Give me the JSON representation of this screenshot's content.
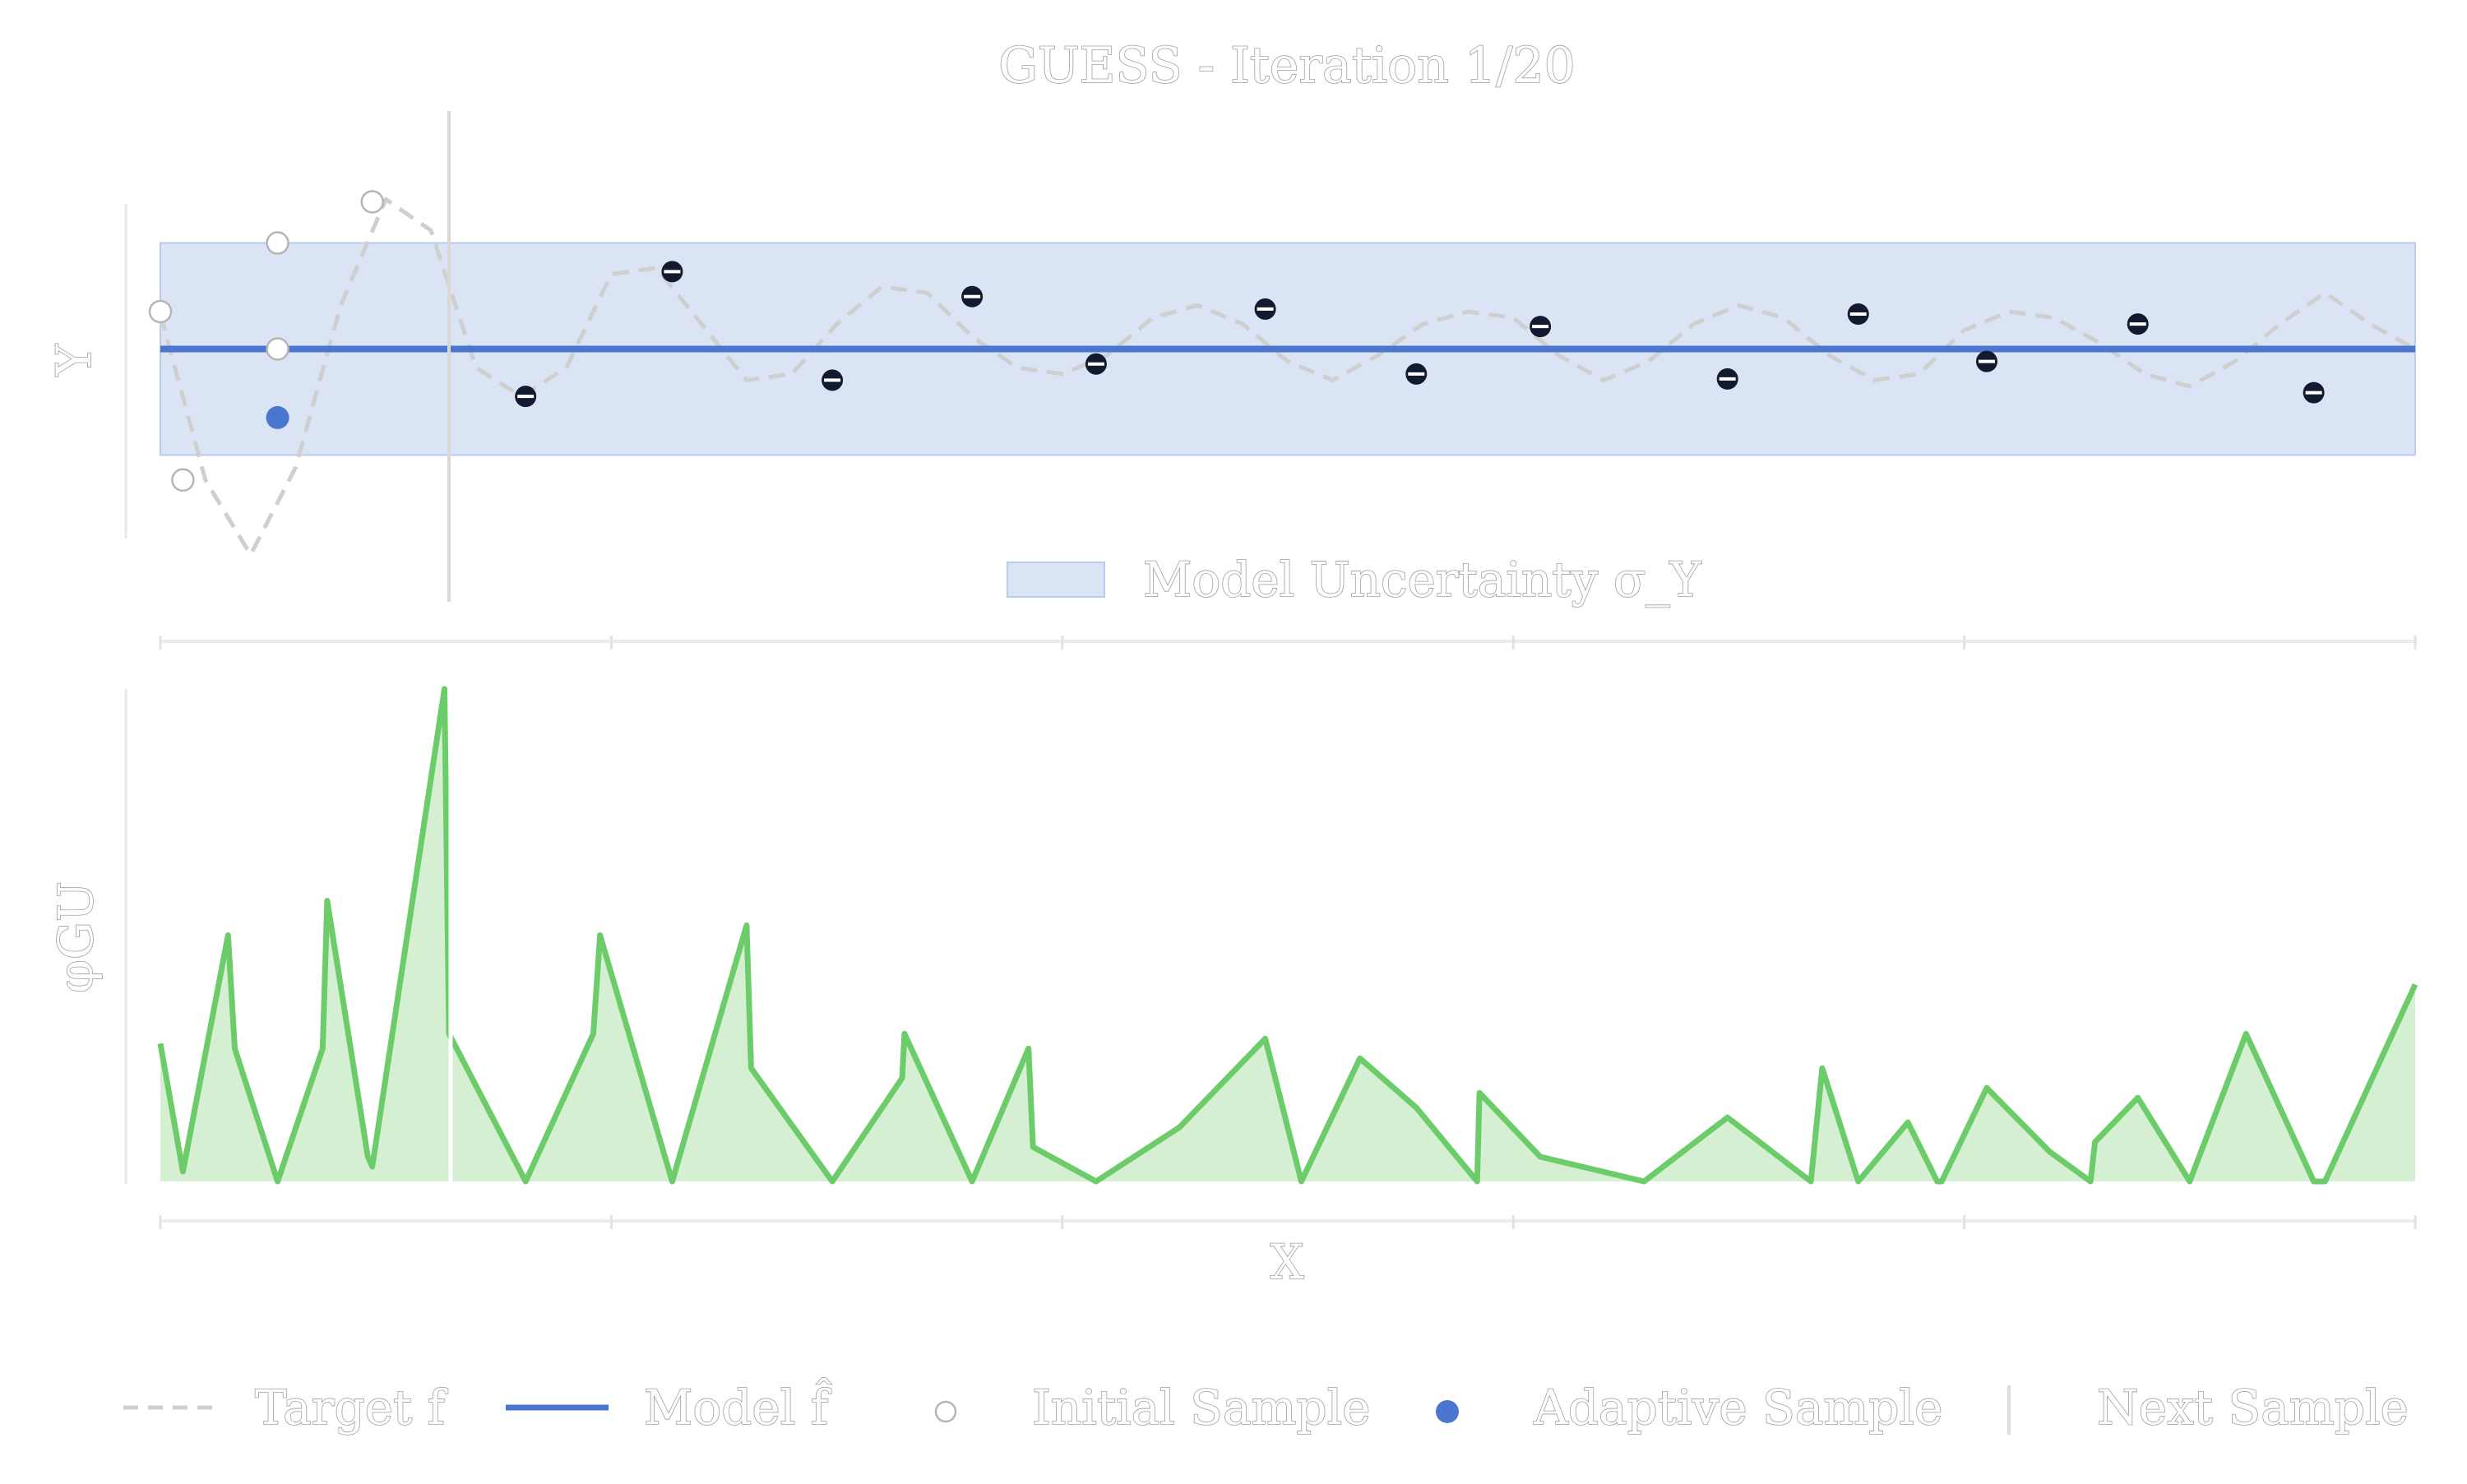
{
  "chart_data": [
    {
      "type": "line",
      "title": "GUESS - Iteration 1/20",
      "xlabel": "",
      "ylabel": "Y",
      "xlim": [
        0,
        1
      ],
      "ylim": [
        -1.75,
        1.15
      ],
      "grid": false,
      "legend": {
        "placement": "bottom-center",
        "entries": [
          "Model Uncertainty σ_Y"
        ]
      },
      "colors": {
        "target": "#cfcfcf",
        "model": "#4a76cf",
        "band": "#dbe4f4",
        "band_edge": "#b9cbee",
        "point_dark": "#111a2e",
        "adaptive": "#4a76cf",
        "next": "#d8d8d8"
      },
      "series": [
        {
          "name": "Target f",
          "style": "dashed",
          "x": [
            0,
            0.02,
            0.04,
            0.06,
            0.08,
            0.1,
            0.12,
            0.14,
            0.16,
            0.18,
            0.2,
            0.22,
            0.24,
            0.26,
            0.28,
            0.3,
            0.32,
            0.34,
            0.36,
            0.38,
            0.4,
            0.42,
            0.44,
            0.46,
            0.48,
            0.5,
            0.52,
            0.54,
            0.56,
            0.58,
            0.6,
            0.62,
            0.64,
            0.66,
            0.68,
            0.7,
            0.72,
            0.74,
            0.76,
            0.78,
            0.8,
            0.82,
            0.84,
            0.86,
            0.88,
            0.9,
            0.92,
            0.94,
            0.96,
            0.98,
            1.0
          ],
          "y": [
            0.28,
            -1.05,
            -1.65,
            -0.95,
            0.35,
            1.2,
            0.95,
            -0.15,
            -0.38,
            -0.15,
            0.6,
            0.65,
            0.2,
            -0.25,
            -0.2,
            0.2,
            0.5,
            0.45,
            0.1,
            -0.15,
            -0.2,
            -0.05,
            0.25,
            0.35,
            0.2,
            -0.1,
            -0.25,
            -0.05,
            0.2,
            0.3,
            0.25,
            -0.05,
            -0.25,
            -0.1,
            0.2,
            0.35,
            0.25,
            -0.05,
            -0.25,
            -0.2,
            0.15,
            0.3,
            0.25,
            0.05,
            -0.2,
            -0.3,
            -0.1,
            0.2,
            0.45,
            0.2,
            0.0
          ]
        },
        {
          "name": "Model f̂",
          "x": [
            0,
            1
          ],
          "y": [
            0.0,
            0.0
          ]
        }
      ],
      "band": {
        "name": "Model Uncertainty σ_Y",
        "lower": -0.85,
        "upper": 0.85
      },
      "points": {
        "initial": [
          {
            "x": 0.0,
            "y": 0.3
          },
          {
            "x": 0.01,
            "y": -1.05
          },
          {
            "x": 0.052,
            "y": 0.0
          },
          {
            "x": 0.052,
            "y": 0.85
          },
          {
            "x": 0.094,
            "y": 1.18
          }
        ],
        "observed": [
          {
            "x": 0.162,
            "y": -0.38
          },
          {
            "x": 0.227,
            "y": 0.62
          },
          {
            "x": 0.298,
            "y": -0.25
          },
          {
            "x": 0.36,
            "y": 0.42
          },
          {
            "x": 0.415,
            "y": -0.12
          },
          {
            "x": 0.49,
            "y": 0.32
          },
          {
            "x": 0.557,
            "y": -0.2
          },
          {
            "x": 0.612,
            "y": 0.18
          },
          {
            "x": 0.695,
            "y": -0.24
          },
          {
            "x": 0.753,
            "y": 0.28
          },
          {
            "x": 0.81,
            "y": -0.1
          },
          {
            "x": 0.877,
            "y": 0.2
          },
          {
            "x": 0.955,
            "y": -0.35
          }
        ],
        "adaptive": [
          {
            "x": 0.052,
            "y": -0.55
          }
        ]
      },
      "next_sample_x": 0.128
    },
    {
      "type": "area",
      "title": "",
      "xlabel": "X",
      "ylabel": "φGU",
      "xlim": [
        0,
        1
      ],
      "ylim": [
        0,
        1
      ],
      "x_ticks": [
        0,
        0.2,
        0.4,
        0.6,
        0.8,
        1.0
      ],
      "grid": false,
      "colors": {
        "line": "#6ccc6a",
        "fill": "#d4efd1"
      },
      "series": [
        {
          "name": "φGU",
          "x": [
            0,
            0.01,
            0.03,
            0.033,
            0.052,
            0.072,
            0.074,
            0.092,
            0.094,
            0.126,
            0.128,
            0.162,
            0.192,
            0.195,
            0.227,
            0.26,
            0.262,
            0.298,
            0.329,
            0.33,
            0.36,
            0.385,
            0.387,
            0.415,
            0.452,
            0.49,
            0.506,
            0.532,
            0.557,
            0.584,
            0.585,
            0.612,
            0.658,
            0.695,
            0.732,
            0.737,
            0.753,
            0.775,
            0.788,
            0.79,
            0.81,
            0.838,
            0.856,
            0.858,
            0.877,
            0.9,
            0.925,
            0.955,
            0.96,
            1.0
          ],
          "y": [
            0.28,
            0.02,
            0.5,
            0.27,
            0.0,
            0.27,
            0.57,
            0.05,
            0.03,
            1.0,
            0.3,
            0.0,
            0.3,
            0.5,
            0.0,
            0.52,
            0.23,
            0.0,
            0.21,
            0.3,
            0.0,
            0.27,
            0.07,
            0.0,
            0.11,
            0.29,
            0.0,
            0.25,
            0.15,
            0.0,
            0.18,
            0.05,
            0.0,
            0.13,
            0.0,
            0.23,
            0.0,
            0.12,
            0.0,
            0.0,
            0.19,
            0.06,
            0.0,
            0.08,
            0.17,
            0.0,
            0.3,
            0.0,
            0.0,
            0.4
          ]
        }
      ],
      "next_sample_x": 0.128
    }
  ],
  "legend": {
    "items": [
      {
        "key": "target",
        "label": "Target f"
      },
      {
        "key": "model",
        "label": "Model f̂"
      },
      {
        "key": "initial",
        "label": "Initial Sample"
      },
      {
        "key": "adaptive",
        "label": "Adaptive Sample"
      },
      {
        "key": "next",
        "label": "Next Sample"
      }
    ]
  }
}
